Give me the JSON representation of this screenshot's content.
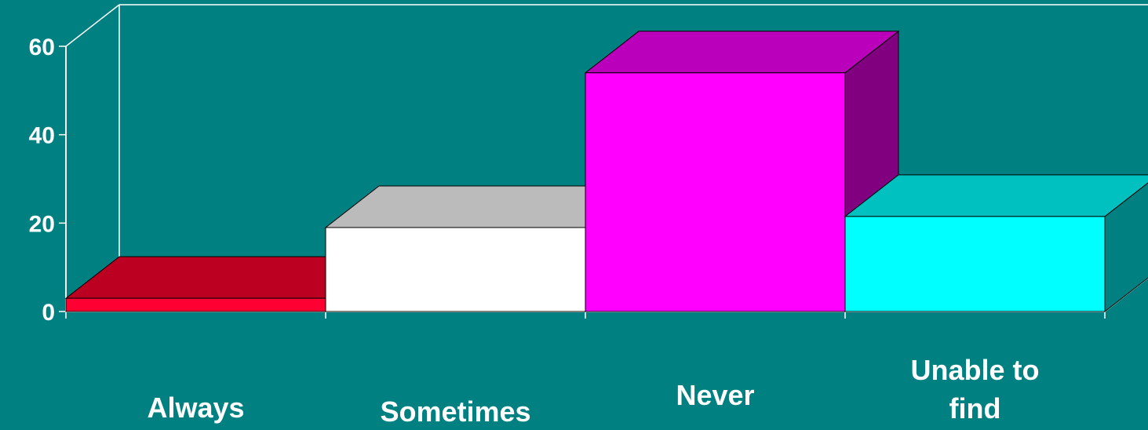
{
  "chart_data": {
    "type": "bar",
    "categories": [
      "Always",
      "Sometimes",
      "Never",
      "Unable to\nfind"
    ],
    "values": [
      3,
      19,
      54,
      21.5
    ],
    "ylim": [
      0,
      60
    ],
    "yticks": [
      0,
      20,
      40,
      60
    ],
    "title": "",
    "xlabel": "",
    "ylabel": "",
    "grid": false,
    "legend": "none",
    "style": "3d",
    "colors": {
      "background": "#008080",
      "axis": "#ffffff",
      "bars": [
        {
          "front": "#ff0033",
          "top": "#bb0022",
          "side": "#880018"
        },
        {
          "front": "#ffffff",
          "top": "#bbbbbb",
          "side": "#999999"
        },
        {
          "front": "#ff00ff",
          "top": "#bb00bb",
          "side": "#800080"
        },
        {
          "front": "#00ffff",
          "top": "#00c0c0",
          "side": "#008080"
        }
      ]
    }
  }
}
